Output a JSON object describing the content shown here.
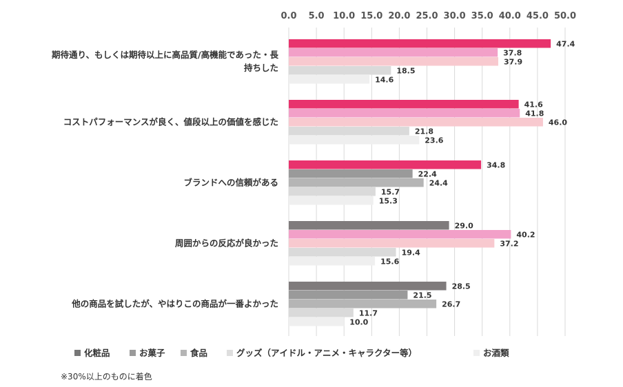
{
  "chart_data": {
    "type": "bar",
    "orientation": "horizontal",
    "xlim": [
      0,
      50
    ],
    "x_ticks": [
      "0.0",
      "5.0",
      "10.0",
      "15.0",
      "20.0",
      "25.0",
      "30.0",
      "35.0",
      "40.0",
      "45.0",
      "50.0"
    ],
    "x_axis_position": "top",
    "grid": "vertical",
    "categories": [
      [
        "期待通り、もしくは期待以上に高品質/高機能であった・長",
        "持ちした"
      ],
      [
        "コストパフォーマンスが良く、値段以上の価値を感じた"
      ],
      [
        "ブランドへの信頼がある"
      ],
      [
        "周囲からの反応が良かった"
      ],
      [
        "他の商品を試したが、やはりこの商品が一番よかった"
      ]
    ],
    "series": [
      {
        "name": "化粧品",
        "values": [
          47.4,
          41.6,
          34.8,
          29.0,
          28.5
        ],
        "legend_color": "#777777"
      },
      {
        "name": "お菓子",
        "values": [
          37.8,
          41.8,
          22.4,
          40.2,
          21.5
        ],
        "legend_color": "#9a9a9a"
      },
      {
        "name": "食品",
        "values": [
          37.9,
          46.0,
          24.4,
          37.2,
          26.7
        ],
        "legend_color": "#b5b5b5"
      },
      {
        "name": "グッズ（アイドル・アニメ・キャラクター等）",
        "values": [
          18.5,
          21.8,
          15.7,
          19.4,
          11.7
        ],
        "legend_color": "#dedede"
      },
      {
        "name": "お酒類",
        "values": [
          14.6,
          23.6,
          15.3,
          15.6,
          10.0
        ],
        "legend_color": "#efefef"
      }
    ],
    "bar_colors": [
      [
        "#e8336d",
        "#f2a0c8",
        "#f8c9cf",
        "#dadada",
        "#efefef"
      ],
      [
        "#e8336d",
        "#f2a0c8",
        "#f8c9cf",
        "#dadada",
        "#efefef"
      ],
      [
        "#e8336d",
        "#9a9a9a",
        "#b5b5b5",
        "#dadada",
        "#efefef"
      ],
      [
        "#7f7b7c",
        "#f2a0c8",
        "#f8c9cf",
        "#dadada",
        "#efefef"
      ],
      [
        "#7f7b7c",
        "#9a9a9a",
        "#b5b5b5",
        "#dadada",
        "#efefef"
      ]
    ],
    "highlight_colors": {
      "化粧品": "#e8336d",
      "お菓子": "#f2a0c8",
      "食品": "#f8c9cf"
    },
    "legend_position": "bottom",
    "note": "※30%以上のものに着色"
  }
}
